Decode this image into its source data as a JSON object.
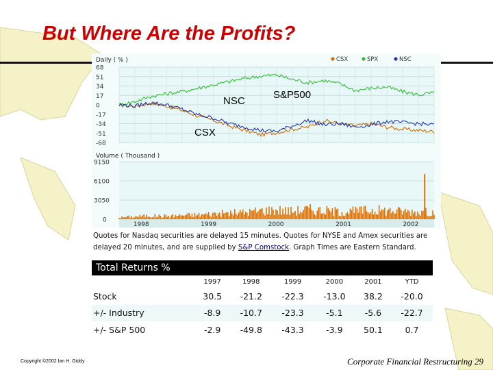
{
  "slide": {
    "title": "But Where Are the Profits?",
    "copyright": "Copyright ©2002 Ian H. Giddy",
    "footer": "Corporate Financial Restructuring 29"
  },
  "colors": {
    "title": "#cc0000",
    "csx": "#c87000",
    "spx": "#33bb33",
    "nsc": "#2233aa",
    "plot_bg": "#e8f8f8",
    "volume_bar": "#e07000",
    "map": "#f6f2c8"
  },
  "chart_data": [
    {
      "type": "line",
      "label": "Daily ( % )",
      "ylim": [
        -68,
        68
      ],
      "yticks": [
        "68",
        "51",
        "34",
        "17",
        "0",
        "-17",
        "-34",
        "-51",
        "-68"
      ],
      "xticks": [
        "1998",
        "1999",
        "2000",
        "2001",
        "2002"
      ],
      "annotations": [
        "NSC",
        "S&P500",
        "CSX"
      ],
      "grid": true,
      "legend_position": "top-right",
      "x": [
        0,
        0.25,
        0.5,
        0.75,
        1,
        1.25,
        1.5,
        1.75,
        2,
        2.25,
        2.5,
        2.75,
        3,
        3.25,
        3.5,
        3.75,
        4,
        4.25,
        4.5,
        4.75,
        5
      ],
      "series": [
        {
          "name": "CSX",
          "values": [
            0,
            -3,
            3,
            -2,
            -10,
            -20,
            -28,
            -38,
            -46,
            -54,
            -50,
            -44,
            -40,
            -28,
            -34,
            -38,
            -34,
            -40,
            -44,
            -46,
            -48
          ]
        },
        {
          "name": "SPX",
          "values": [
            0,
            6,
            15,
            20,
            24,
            30,
            36,
            42,
            48,
            52,
            54,
            46,
            40,
            44,
            38,
            26,
            30,
            32,
            24,
            18,
            22
          ]
        },
        {
          "name": "NSC",
          "values": [
            0,
            -2,
            4,
            0,
            -8,
            -18,
            -24,
            -34,
            -40,
            -46,
            -48,
            -38,
            -28,
            -36,
            -34,
            -40,
            -36,
            -30,
            -32,
            -34,
            -36
          ]
        }
      ]
    },
    {
      "type": "bar",
      "label": "Volume ( Thousand )",
      "ylim": [
        0,
        9150
      ],
      "yticks": [
        "9150",
        "6100",
        "3050",
        "0"
      ],
      "x": [
        0,
        0.25,
        0.5,
        0.75,
        1,
        1.25,
        1.5,
        1.75,
        2,
        2.25,
        2.5,
        2.75,
        3,
        3.25,
        3.5,
        3.75,
        4,
        4.25,
        4.5,
        4.75,
        5
      ],
      "values": [
        300,
        450,
        550,
        500,
        650,
        700,
        900,
        1000,
        1100,
        1400,
        1500,
        1300,
        1600,
        1400,
        1200,
        1300,
        1500,
        1400,
        1300,
        1200,
        1100
      ],
      "peak": {
        "x": 4.85,
        "value": 7200
      }
    }
  ],
  "quote_note": {
    "line1": "Quotes for Nasdaq securities are delayed 15 minutes. Quotes for NYSE and Amex securities are",
    "line2_pre": "delayed 20 minutes, and are supplied by ",
    "line2_link": "S&P Comstock",
    "line2_post": ". Graph Times are Eastern Standard."
  },
  "total_returns": {
    "header": "Total Returns %",
    "columns": [
      "1997",
      "1998",
      "1999",
      "2000",
      "2001",
      "YTD"
    ],
    "rows": [
      {
        "label": "Stock",
        "values": [
          "30.5",
          "-21.2",
          "-22.3",
          "-13.0",
          "38.2",
          "-20.0"
        ]
      },
      {
        "label": "+/- Industry",
        "values": [
          "-8.9",
          "-10.7",
          "-23.3",
          "-5.1",
          "-5.6",
          "-22.7"
        ]
      },
      {
        "label": "+/- S&P 500",
        "values": [
          "-2.9",
          "-49.8",
          "-43.3",
          "-3.9",
          "50.1",
          "0.7"
        ]
      }
    ]
  }
}
